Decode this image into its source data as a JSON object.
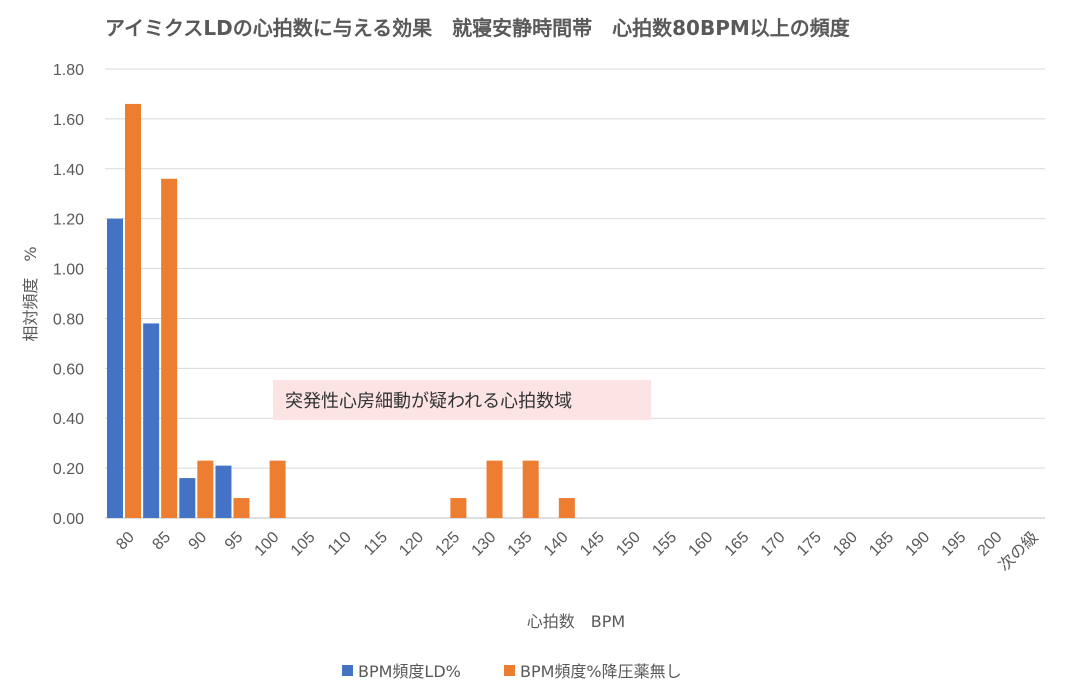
{
  "chart_data": {
    "type": "bar",
    "title": "アイミクスLDの心拍数に与える効果　就寝安静時間帯　心拍数80BPM以上の頻度",
    "xlabel": "心拍数　BPM",
    "ylabel": "相対頻度　%",
    "ylim": [
      0,
      1.8
    ],
    "yticks": [
      "0.00",
      "0.20",
      "0.40",
      "0.60",
      "0.80",
      "1.00",
      "1.20",
      "1.40",
      "1.60",
      "1.80"
    ],
    "ytick_values": [
      0,
      0.2,
      0.4,
      0.6,
      0.8,
      1.0,
      1.2,
      1.4,
      1.6,
      1.8
    ],
    "grid": true,
    "legend_position": "bottom",
    "categories": [
      "80",
      "85",
      "90",
      "95",
      "100",
      "105",
      "110",
      "115",
      "120",
      "125",
      "130",
      "135",
      "140",
      "145",
      "150",
      "155",
      "160",
      "165",
      "170",
      "175",
      "180",
      "185",
      "190",
      "195",
      "200",
      "次の級"
    ],
    "series": [
      {
        "name": "BPM頻度LD%",
        "color": "#4472C4",
        "values": [
          1.2,
          0.78,
          0.16,
          0.21,
          0,
          0,
          0,
          0,
          0,
          0,
          0,
          0,
          0,
          0,
          0,
          0,
          0,
          0,
          0,
          0,
          0,
          0,
          0,
          0,
          0,
          0
        ]
      },
      {
        "name": "BPM頻度%降圧薬無し",
        "color": "#ED7D31",
        "values": [
          1.66,
          1.36,
          0.23,
          0.08,
          0.23,
          0,
          0,
          0,
          0,
          0.08,
          0.23,
          0.23,
          0.08,
          0,
          0,
          0,
          0,
          0,
          0,
          0,
          0,
          0,
          0,
          0,
          0,
          0
        ]
      }
    ],
    "annotation": {
      "text": "突発性心房細動が疑われる心拍数域",
      "background": "#FCE4E4"
    }
  }
}
